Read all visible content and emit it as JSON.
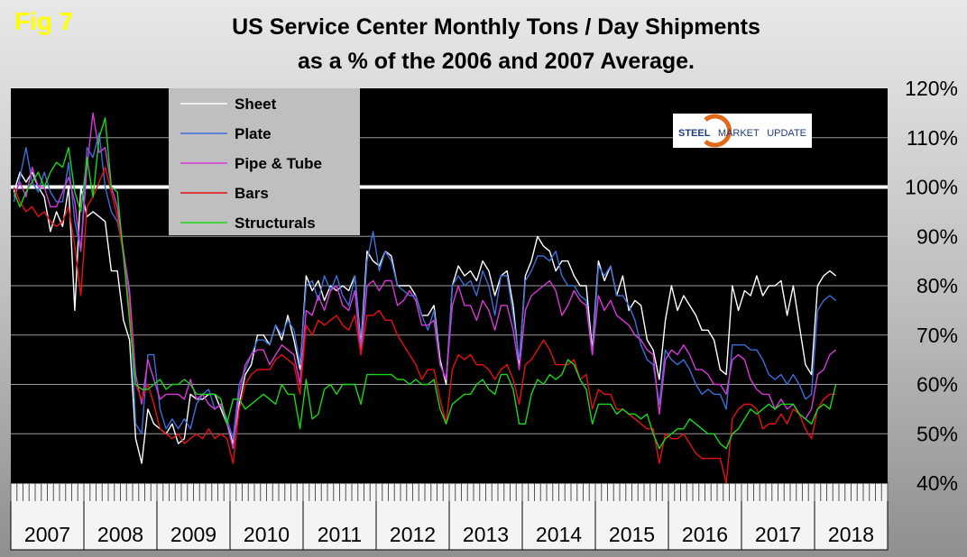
{
  "fig_label": "Fig 7",
  "title_line1": "US Service Center Monthly Tons / Day Shipments",
  "title_line2": "as a % of the 2006 and 2007 Average.",
  "logo": {
    "word1": "STEEL",
    "word2": "MARKET",
    "word3": "UPDATE"
  },
  "chart_data": {
    "type": "line",
    "title": "US Service Center Monthly Tons / Day Shipments as a % of the 2006 and 2007 Average.",
    "xlabel": "",
    "ylabel": "",
    "ylim": [
      40,
      120
    ],
    "yticks": [
      "40%",
      "50%",
      "60%",
      "70%",
      "80%",
      "90%",
      "100%",
      "110%",
      "120%"
    ],
    "years": [
      "2007",
      "2008",
      "2009",
      "2010",
      "2011",
      "2012",
      "2013",
      "2014",
      "2015",
      "2016",
      "2017",
      "2018"
    ],
    "x_start": "2007-01",
    "legend_position": "top-left",
    "reference_line": 100,
    "grid": "horizontal",
    "series": [
      {
        "name": "Sheet",
        "color": "#ffffff",
        "values": [
          99,
          103,
          101,
          103,
          100,
          98,
          91,
          95,
          92,
          100,
          75,
          100,
          94,
          95,
          94,
          93,
          83,
          83,
          73,
          69,
          49,
          44,
          55,
          52,
          51,
          50,
          52,
          48,
          49,
          58,
          57,
          57,
          58,
          58,
          55,
          52,
          48,
          56,
          62,
          64,
          70,
          70,
          68,
          72,
          69,
          74,
          69,
          63,
          82,
          79,
          81,
          77,
          80,
          79,
          80,
          79,
          82,
          68,
          87,
          85,
          84,
          87,
          86,
          80,
          80,
          80,
          78,
          74,
          74,
          76,
          65,
          60,
          80,
          84,
          82,
          83,
          81,
          85,
          83,
          78,
          82,
          83,
          76,
          64,
          82,
          85,
          90,
          88,
          87,
          83,
          85,
          85,
          82,
          80,
          80,
          67,
          85,
          81,
          84,
          78,
          82,
          75,
          77,
          76,
          69,
          67,
          61,
          73,
          80,
          75,
          78,
          76,
          74,
          71,
          71,
          69,
          63,
          62,
          80,
          75,
          79,
          78,
          82,
          78,
          80,
          80,
          81,
          74,
          80,
          72,
          64,
          62,
          80,
          82,
          83,
          82
        ]
      },
      {
        "name": "Plate",
        "color": "#3a6fd8",
        "values": [
          97,
          102,
          108,
          101,
          99,
          103,
          99,
          97,
          97,
          105,
          93,
          87,
          108,
          106,
          111,
          100,
          95,
          93,
          87,
          78,
          52,
          50,
          66,
          66,
          55,
          51,
          53,
          51,
          53,
          51,
          56,
          58,
          59,
          55,
          56,
          53,
          49,
          60,
          63,
          66,
          69,
          69,
          68,
          72,
          70,
          73,
          71,
          64,
          80,
          81,
          77,
          82,
          79,
          82,
          78,
          76,
          82,
          67,
          85,
          91,
          83,
          87,
          85,
          80,
          79,
          78,
          78,
          74,
          71,
          75,
          64,
          61,
          80,
          82,
          80,
          81,
          78,
          83,
          80,
          74,
          82,
          82,
          74,
          65,
          81,
          83,
          86,
          86,
          85,
          87,
          82,
          80,
          80,
          78,
          77,
          66,
          84,
          82,
          84,
          78,
          78,
          76,
          73,
          68,
          65,
          64,
          56,
          67,
          65,
          64,
          65,
          63,
          60,
          58,
          59,
          58,
          58,
          55,
          68,
          68,
          68,
          67,
          67,
          65,
          62,
          61,
          62,
          60,
          62,
          60,
          57,
          58,
          75,
          77,
          78,
          77
        ]
      },
      {
        "name": "Pipe & Tube",
        "color": "#d838d8",
        "values": [
          98,
          101,
          98,
          104,
          100,
          100,
          96,
          96,
          99,
          102,
          97,
          87,
          104,
          115,
          107,
          108,
          100,
          96,
          87,
          79,
          62,
          56,
          65,
          61,
          57,
          58,
          58,
          58,
          57,
          61,
          57,
          58,
          56,
          55,
          56,
          52,
          47,
          58,
          64,
          66,
          67,
          67,
          64,
          66,
          68,
          67,
          66,
          60,
          75,
          74,
          78,
          75,
          79,
          80,
          76,
          75,
          79,
          66,
          80,
          81,
          79,
          81,
          81,
          76,
          77,
          79,
          77,
          72,
          72,
          73,
          64,
          61,
          76,
          80,
          76,
          76,
          73,
          77,
          75,
          71,
          76,
          76,
          71,
          63,
          75,
          78,
          79,
          80,
          81,
          79,
          74,
          76,
          79,
          77,
          76,
          66,
          78,
          75,
          77,
          74,
          73,
          72,
          70,
          69,
          67,
          66,
          54,
          65,
          67,
          66,
          68,
          66,
          63,
          63,
          62,
          60,
          60,
          58,
          65,
          66,
          65,
          61,
          59,
          58,
          58,
          55,
          57,
          55,
          56,
          54,
          53,
          55,
          62,
          63,
          66,
          67
        ]
      },
      {
        "name": "Bars",
        "color": "#e81010",
        "values": [
          100,
          97,
          95,
          96,
          94,
          95,
          93,
          92,
          93,
          96,
          88,
          78,
          96,
          98,
          101,
          104,
          99,
          94,
          86,
          75,
          60,
          57,
          60,
          56,
          51,
          50,
          49,
          50,
          48,
          49,
          50,
          49,
          51,
          49,
          50,
          49,
          44,
          55,
          60,
          62,
          63,
          63,
          63,
          65,
          66,
          65,
          64,
          58,
          72,
          70,
          73,
          72,
          73,
          74,
          72,
          71,
          74,
          66,
          74,
          74,
          75,
          73,
          73,
          70,
          68,
          66,
          64,
          61,
          63,
          63,
          57,
          52,
          63,
          66,
          65,
          66,
          64,
          64,
          63,
          61,
          63,
          64,
          61,
          56,
          64,
          65,
          67,
          69,
          67,
          64,
          64,
          64,
          65,
          61,
          62,
          55,
          59,
          58,
          58,
          55,
          55,
          54,
          53,
          52,
          51,
          51,
          44,
          50,
          49,
          49,
          50,
          48,
          46,
          45,
          45,
          45,
          45,
          40,
          53,
          55,
          56,
          56,
          55,
          51,
          52,
          52,
          54,
          52,
          55,
          54,
          51,
          49,
          55,
          57,
          58,
          58
        ]
      },
      {
        "name": "Structurals",
        "color": "#18d818",
        "values": [
          99,
          96,
          99,
          101,
          103,
          100,
          103,
          105,
          104,
          108,
          99,
          95,
          106,
          98,
          110,
          114,
          100,
          99,
          86,
          73,
          60,
          59,
          59,
          60,
          61,
          59,
          60,
          60,
          61,
          60,
          58,
          58,
          58,
          58,
          57,
          52,
          57,
          57,
          55,
          56,
          57,
          58,
          57,
          56,
          60,
          58,
          58,
          51,
          61,
          53,
          54,
          59,
          60,
          58,
          60,
          60,
          60,
          56,
          62,
          62,
          62,
          62,
          62,
          61,
          61,
          60,
          61,
          60,
          60,
          61,
          55,
          52,
          56,
          57,
          58,
          58,
          60,
          61,
          59,
          58,
          62,
          62,
          59,
          52,
          52,
          58,
          61,
          60,
          62,
          61,
          62,
          65,
          64,
          61,
          59,
          52,
          56,
          56,
          56,
          54,
          55,
          54,
          54,
          53,
          54,
          50,
          47,
          49,
          50,
          51,
          51,
          53,
          52,
          51,
          50,
          50,
          48,
          47,
          50,
          51,
          53,
          55,
          54,
          55,
          56,
          55,
          56,
          56,
          56,
          54,
          53,
          52,
          55,
          56,
          55,
          60
        ]
      }
    ]
  }
}
